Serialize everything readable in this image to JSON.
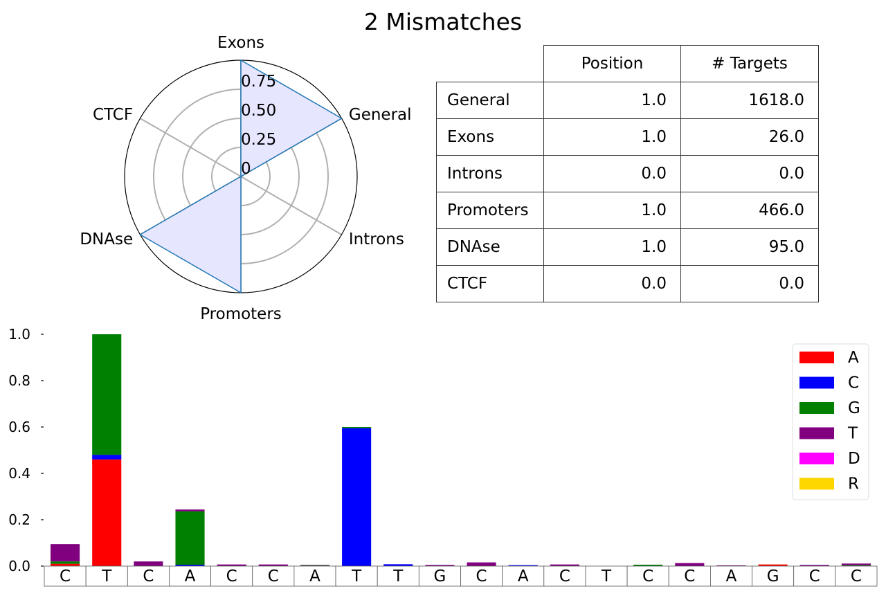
{
  "title": "2 Mismatches",
  "chart_data": [
    {
      "type": "radar",
      "axes": [
        "General",
        "Exons",
        "CTCF",
        "DNAse",
        "Promoters",
        "Introns"
      ],
      "values": [
        1.0,
        1.0,
        0.0,
        1.0,
        1.0,
        0.0
      ],
      "radial_ticks": [
        "0",
        "0.25",
        "0.50",
        "0.75"
      ],
      "rlim": [
        0,
        1
      ],
      "fill_color": "#e6e6ff",
      "line_color": "#1f77b4"
    },
    {
      "type": "table",
      "columns": [
        "Position",
        "# Targets"
      ],
      "rows": [
        {
          "label": "General",
          "position": "1.0",
          "targets": "1618.0"
        },
        {
          "label": "Exons",
          "position": "1.0",
          "targets": "26.0"
        },
        {
          "label": "Introns",
          "position": "0.0",
          "targets": "0.0"
        },
        {
          "label": "Promoters",
          "position": "1.0",
          "targets": "466.0"
        },
        {
          "label": "DNAse",
          "position": "1.0",
          "targets": "95.0"
        },
        {
          "label": "CTCF",
          "position": "0.0",
          "targets": "0.0"
        }
      ]
    },
    {
      "type": "bar",
      "stacked": true,
      "categories": [
        "C",
        "T",
        "C",
        "A",
        "C",
        "C",
        "A",
        "T",
        "T",
        "G",
        "C",
        "A",
        "C",
        "T",
        "C",
        "C",
        "A",
        "G",
        "C",
        "C"
      ],
      "ylim": [
        0,
        1.0
      ],
      "yticks": [
        "0.0",
        "0.2",
        "0.4",
        "0.6",
        "0.8",
        "1.0"
      ],
      "legend_position": "top-right",
      "series": [
        {
          "name": "A",
          "color": "#ff0000",
          "values": [
            0.01,
            0.46,
            0,
            0,
            0,
            0,
            0,
            0,
            0,
            0,
            0,
            0,
            0,
            0,
            0,
            0,
            0,
            0.007,
            0,
            0
          ]
        },
        {
          "name": "C",
          "color": "#0000ff",
          "values": [
            0,
            0.02,
            0,
            0.006,
            0,
            0,
            0,
            0.595,
            0.008,
            0,
            0,
            0.004,
            0,
            0,
            0,
            0,
            0,
            0,
            0,
            0
          ]
        },
        {
          "name": "G",
          "color": "#008000",
          "values": [
            0.01,
            0.52,
            0,
            0.23,
            0,
            0,
            0.003,
            0.005,
            0,
            0,
            0,
            0,
            0,
            0,
            0.006,
            0,
            0,
            0,
            0,
            0.004
          ]
        },
        {
          "name": "T",
          "color": "#800080",
          "values": [
            0.075,
            0,
            0.02,
            0.008,
            0.007,
            0.007,
            0.002,
            0,
            0,
            0.005,
            0.016,
            0,
            0.007,
            0,
            0,
            0.013,
            0.003,
            0,
            0.005,
            0.007
          ]
        },
        {
          "name": "D",
          "color": "#ff00ff",
          "values": [
            0,
            0,
            0,
            0,
            0,
            0,
            0,
            0,
            0,
            0,
            0,
            0,
            0,
            0,
            0,
            0,
            0,
            0,
            0,
            0
          ]
        },
        {
          "name": "R",
          "color": "#ffd700",
          "values": [
            0,
            0,
            0,
            0,
            0,
            0,
            0,
            0,
            0,
            0,
            0,
            0,
            0,
            0,
            0,
            0,
            0,
            0,
            0,
            0
          ]
        }
      ]
    }
  ]
}
